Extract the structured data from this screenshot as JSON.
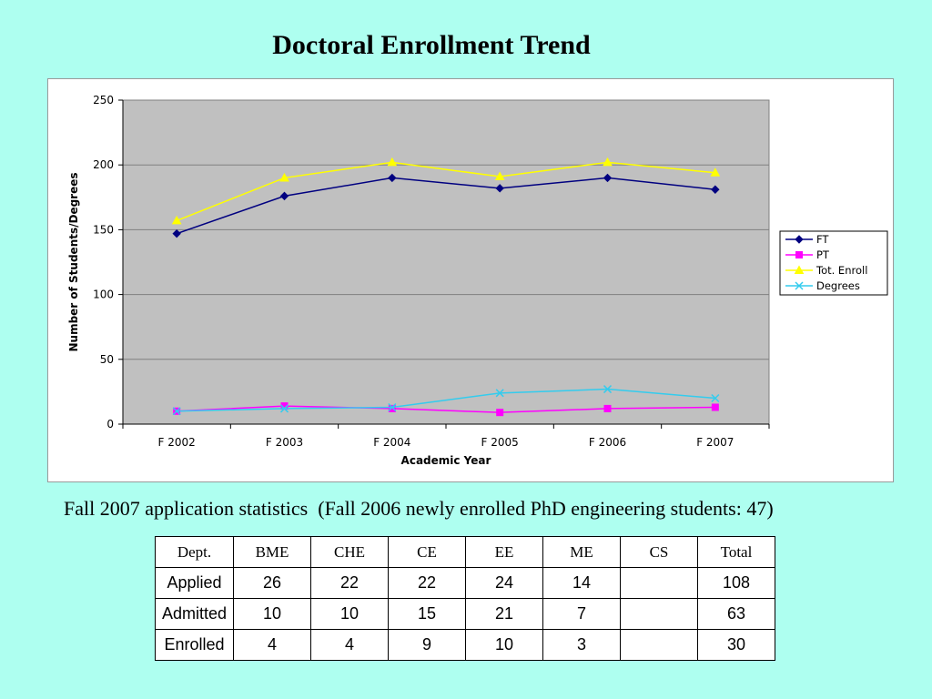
{
  "title": "Doctoral Enrollment Trend",
  "subtitle": "Fall 2007 application statistics  (Fall 2006 newly enrolled PhD engineering students: 47)",
  "chart_data": {
    "type": "line",
    "title": "",
    "xlabel": "Academic Year",
    "ylabel": "Number of Students/Degrees",
    "categories": [
      "F 2002",
      "F 2003",
      "F 2004",
      "F 2005",
      "F 2006",
      "F 2007"
    ],
    "ylim": [
      0,
      250
    ],
    "yticks": [
      0,
      50,
      100,
      150,
      200,
      250
    ],
    "ytick_labels": [
      "0",
      "50",
      "100",
      "150",
      "200",
      "250"
    ],
    "grid": true,
    "legend_position": "right",
    "plot_background": "#c0c0c0",
    "series": [
      {
        "name": "FT",
        "values": [
          147,
          176,
          190,
          182,
          190,
          181
        ],
        "color": "#000080",
        "marker": "diamond"
      },
      {
        "name": "PT",
        "values": [
          10,
          14,
          12,
          9,
          12,
          13
        ],
        "color": "#ff00ff",
        "marker": "square"
      },
      {
        "name": "Tot. Enroll",
        "values": [
          157,
          190,
          202,
          191,
          202,
          194
        ],
        "color": "#ffff00",
        "marker": "triangle"
      },
      {
        "name": "Degrees",
        "values": [
          10,
          12,
          13,
          24,
          27,
          20
        ],
        "color": "#33ccee",
        "marker": "x"
      }
    ]
  },
  "table": {
    "headers": [
      "Dept.",
      "BME",
      "CHE",
      "CE",
      "EE",
      "ME",
      "CS",
      "Total"
    ],
    "rows": [
      [
        "Applied",
        "26",
        "22",
        "22",
        "24",
        "14",
        "",
        "108"
      ],
      [
        "Admitted",
        "10",
        "10",
        "15",
        "21",
        "7",
        "",
        "63"
      ],
      [
        "Enrolled",
        "4",
        "4",
        "9",
        "10",
        "3",
        "",
        "30"
      ]
    ]
  },
  "colors": {
    "background": "#aefff0",
    "plot_area": "#c0c0c0"
  }
}
